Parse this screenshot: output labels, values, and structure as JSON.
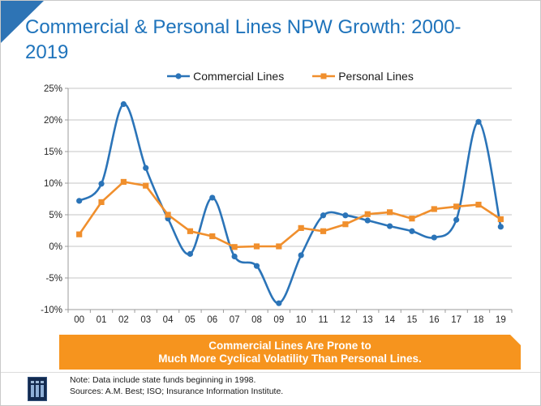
{
  "header": {
    "title": "Commercial & Personal Lines NPW Growth: 2000-2019"
  },
  "banner": {
    "line1": "Commercial Lines Are Prone to",
    "line2": "Much More Cyclical Volatility Than Personal Lines.",
    "background": "#F6941E"
  },
  "footer": {
    "note": "Note: Data include state funds beginning in 1998.",
    "sources": "Sources: A.M. Best; ISO; Insurance Information Institute.",
    "logo": "insurance-information-institute-logo"
  },
  "colors": {
    "title_blue": "#1E73BB",
    "triangle_blue": "#2E74B5",
    "commercial_blue": "#2B74B8",
    "personal_orange": "#F08F2D",
    "banner_orange": "#F6941E",
    "gridline": "#C6C6C6",
    "axis": "#9B9B9B"
  },
  "chart_data": {
    "type": "line",
    "title": "Commercial & Personal Lines NPW Growth: 2000-2019",
    "categories": [
      "00",
      "01",
      "02",
      "03",
      "04",
      "05",
      "06",
      "07",
      "08",
      "09",
      "10",
      "11",
      "12",
      "13",
      "14",
      "15",
      "16",
      "17",
      "18",
      "19"
    ],
    "series": [
      {
        "name": "Commercial Lines",
        "color": "#2B74B8",
        "marker": "circle",
        "smooth": true,
        "values": [
          7.2,
          9.9,
          22.5,
          12.4,
          4.4,
          -1.2,
          7.7,
          -1.6,
          -3.1,
          -9.0,
          -1.4,
          4.9,
          4.9,
          4.1,
          3.2,
          2.4,
          1.4,
          4.2,
          19.7,
          3.1
        ]
      },
      {
        "name": "Personal Lines",
        "color": "#F08F2D",
        "marker": "square",
        "smooth": false,
        "values": [
          1.9,
          7.0,
          10.2,
          9.6,
          5.0,
          2.4,
          1.6,
          -0.1,
          0.0,
          0.0,
          2.9,
          2.4,
          3.5,
          5.1,
          5.4,
          4.4,
          5.9,
          6.3,
          6.6,
          4.3
        ]
      }
    ],
    "xlabel": "",
    "ylabel": "",
    "ylim": [
      -10,
      25
    ],
    "ytick_step": 5,
    "ytick_suffix": "%",
    "grid": true,
    "legend_position": "top"
  }
}
